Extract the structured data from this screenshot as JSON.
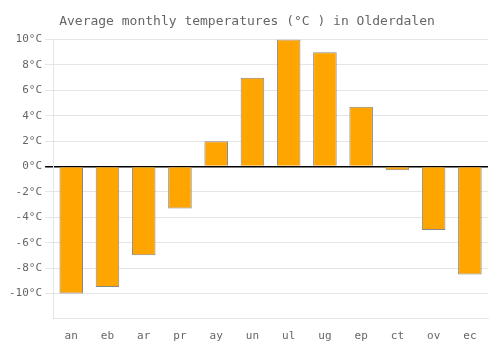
{
  "chart_data": {
    "type": "bar",
    "title": "Average monthly temperatures (°C ) in Olderdalen",
    "categories": [
      "an",
      "eb",
      "ar",
      "pr",
      "ay",
      "un",
      "ul",
      "ug",
      "ep",
      "ct",
      "ov",
      "ec"
    ],
    "values": [
      -10,
      -9.5,
      -7,
      -3.3,
      2,
      7,
      10,
      9,
      4.7,
      -0.3,
      -5,
      -8.5
    ],
    "color": "#FFA500",
    "ylim": [
      -12,
      10
    ],
    "yticks": [
      {
        "value": -10,
        "label": "-10°C"
      },
      {
        "value": -8,
        "label": "-8°C"
      },
      {
        "value": -6,
        "label": "-6°C"
      },
      {
        "value": -4,
        "label": "-4°C"
      },
      {
        "value": -2,
        "label": "-2°C"
      },
      {
        "value": 0,
        "label": "0°C"
      },
      {
        "value": 2,
        "label": "2°C"
      },
      {
        "value": 4,
        "label": "4°C"
      },
      {
        "value": 6,
        "label": "6°C"
      },
      {
        "value": 8,
        "label": "8°C"
      },
      {
        "value": 10,
        "label": "10°C"
      }
    ],
    "grid": true
  }
}
